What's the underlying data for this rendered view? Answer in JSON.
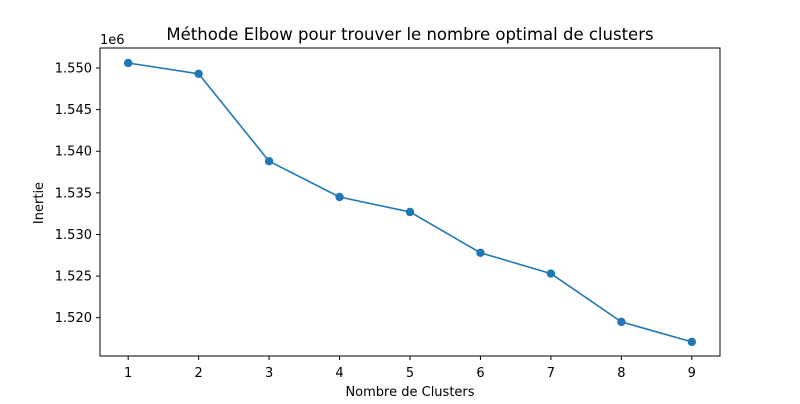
{
  "chart_data": {
    "type": "line",
    "title": "Méthode Elbow pour trouver le nombre optimal de clusters",
    "xlabel": "Nombre de Clusters",
    "ylabel": "Inertie",
    "y_offset_label": "1e6",
    "x": [
      1,
      2,
      3,
      4,
      5,
      6,
      7,
      8,
      9
    ],
    "series": [
      {
        "values": [
          1550600,
          1549300,
          1538800,
          1534500,
          1532700,
          1527800,
          1525300,
          1519500,
          1517100
        ],
        "color": "#1f77b4",
        "marker": "circle"
      }
    ],
    "xlim": [
      0.6,
      9.4
    ],
    "ylim": [
      1515400,
      1552400
    ],
    "xticks": [
      1,
      2,
      3,
      4,
      5,
      6,
      7,
      8,
      9
    ],
    "xtick_labels": [
      "1",
      "2",
      "3",
      "4",
      "5",
      "6",
      "7",
      "8",
      "9"
    ],
    "yticks": [
      1520000,
      1525000,
      1530000,
      1535000,
      1540000,
      1545000,
      1550000
    ],
    "ytick_labels": [
      "1.520",
      "1.525",
      "1.530",
      "1.535",
      "1.540",
      "1.545",
      "1.550"
    ],
    "grid": false,
    "legend": "none"
  }
}
